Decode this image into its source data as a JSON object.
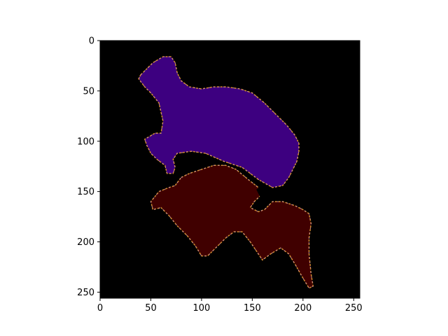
{
  "chart_data": {
    "type": "heatmap",
    "title": "",
    "xlabel": "",
    "ylabel": "",
    "xlim": [
      0,
      256
    ],
    "ylim": [
      256,
      0
    ],
    "x_ticks": [
      0,
      50,
      100,
      150,
      200,
      250
    ],
    "y_ticks": [
      0,
      50,
      100,
      150,
      200,
      250
    ],
    "x_tick_labels": [
      "0",
      "50",
      "100",
      "150",
      "200",
      "250"
    ],
    "y_tick_labels": [
      "0",
      "50",
      "100",
      "150",
      "200",
      "250"
    ],
    "grid": false,
    "legend": "none",
    "colors": {
      "background": "#000000",
      "upper_region": "#3d0080",
      "lower_region": "#400000",
      "edge_pink": "#c88aa0",
      "edge_orange": "#d08a30",
      "edge_green": "#2e7d32"
    },
    "regions": [
      {
        "name": "upper-region",
        "color": "#3d0080",
        "outline": [
          [
            40,
            34
          ],
          [
            52,
            22
          ],
          [
            62,
            16
          ],
          [
            70,
            16
          ],
          [
            74,
            22
          ],
          [
            76,
            32
          ],
          [
            80,
            40
          ],
          [
            88,
            46
          ],
          [
            100,
            48
          ],
          [
            112,
            46
          ],
          [
            124,
            46
          ],
          [
            138,
            48
          ],
          [
            150,
            52
          ],
          [
            162,
            62
          ],
          [
            174,
            74
          ],
          [
            184,
            84
          ],
          [
            192,
            94
          ],
          [
            196,
            102
          ],
          [
            196,
            110
          ],
          [
            194,
            120
          ],
          [
            186,
            136
          ],
          [
            180,
            144
          ],
          [
            170,
            146
          ],
          [
            156,
            138
          ],
          [
            140,
            126
          ],
          [
            122,
            120
          ],
          [
            104,
            112
          ],
          [
            90,
            110
          ],
          [
            76,
            112
          ],
          [
            72,
            118
          ],
          [
            74,
            126
          ],
          [
            72,
            132
          ],
          [
            66,
            132
          ],
          [
            64,
            124
          ],
          [
            56,
            118
          ],
          [
            50,
            112
          ],
          [
            46,
            104
          ],
          [
            44,
            98
          ],
          [
            54,
            92
          ],
          [
            60,
            92
          ],
          [
            62,
            80
          ],
          [
            58,
            62
          ],
          [
            50,
            52
          ],
          [
            44,
            46
          ],
          [
            38,
            38
          ]
        ]
      },
      {
        "name": "lower-region",
        "color": "#400000",
        "outline": [
          [
            80,
            136
          ],
          [
            88,
            132
          ],
          [
            100,
            128
          ],
          [
            112,
            124
          ],
          [
            124,
            124
          ],
          [
            134,
            128
          ],
          [
            146,
            138
          ],
          [
            156,
            146
          ],
          [
            158,
            154
          ],
          [
            152,
            160
          ],
          [
            148,
            166
          ],
          [
            156,
            170
          ],
          [
            162,
            168
          ],
          [
            170,
            160
          ],
          [
            180,
            160
          ],
          [
            192,
            164
          ],
          [
            200,
            168
          ],
          [
            206,
            172
          ],
          [
            208,
            182
          ],
          [
            206,
            196
          ],
          [
            206,
            212
          ],
          [
            208,
            232
          ],
          [
            210,
            244
          ],
          [
            206,
            246
          ],
          [
            200,
            236
          ],
          [
            192,
            222
          ],
          [
            186,
            212
          ],
          [
            178,
            206
          ],
          [
            168,
            212
          ],
          [
            160,
            218
          ],
          [
            156,
            212
          ],
          [
            148,
            200
          ],
          [
            140,
            190
          ],
          [
            132,
            190
          ],
          [
            124,
            196
          ],
          [
            114,
            206
          ],
          [
            106,
            214
          ],
          [
            100,
            214
          ],
          [
            94,
            204
          ],
          [
            86,
            194
          ],
          [
            76,
            184
          ],
          [
            68,
            174
          ],
          [
            60,
            166
          ],
          [
            52,
            168
          ],
          [
            50,
            160
          ],
          [
            58,
            150
          ],
          [
            68,
            146
          ],
          [
            74,
            144
          ]
        ]
      }
    ],
    "holes": [
      {
        "name": "gap-hole",
        "outline": [
          [
            154,
            148
          ],
          [
            160,
            144
          ],
          [
            168,
            146
          ],
          [
            170,
            152
          ],
          [
            166,
            156
          ],
          [
            158,
            156
          ]
        ]
      }
    ]
  }
}
